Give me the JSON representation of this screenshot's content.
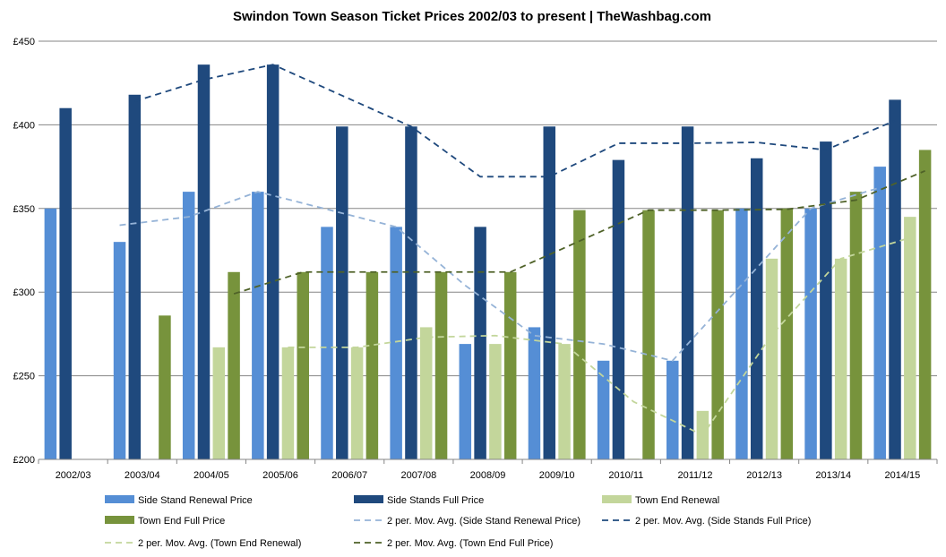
{
  "chart_data": {
    "type": "bar",
    "title": "Swindon Town Season Ticket Prices 2002/03 to present | TheWashbag.com",
    "xlabel": "",
    "ylabel": "",
    "ylim": [
      200,
      450
    ],
    "yticks": [
      200,
      250,
      300,
      350,
      400,
      450
    ],
    "ytick_labels": [
      "£200",
      "£250",
      "£300",
      "£350",
      "£400",
      "£450"
    ],
    "grid": true,
    "legend_position": "bottom",
    "categories": [
      "2002/03",
      "2003/04",
      "2004/05",
      "2005/06",
      "2006/07",
      "2007/08",
      "2008/09",
      "2009/10",
      "2010/11",
      "2011/12",
      "2012/13",
      "2013/14",
      "2014/15"
    ],
    "series": [
      {
        "name": "Side Stand Renewal Price",
        "color": "#558ed5",
        "values": [
          350,
          330,
          360,
          360,
          339,
          339,
          269,
          279,
          259,
          259,
          350,
          350,
          375
        ]
      },
      {
        "name": "Side Stands Full Price",
        "color": "#1f497d",
        "values": [
          410,
          418,
          436,
          436,
          399,
          399,
          339,
          399,
          379,
          399,
          380,
          390,
          415
        ]
      },
      {
        "name": "Town End Renewal",
        "color": "#c3d69b",
        "values": [
          null,
          null,
          267,
          267,
          267,
          279,
          269,
          269,
          200,
          229,
          320,
          320,
          345
        ]
      },
      {
        "name": "Town End Full Price",
        "color": "#77933c",
        "values": [
          null,
          286,
          312,
          312,
          312,
          312,
          312,
          349,
          349,
          349,
          350,
          360,
          385
        ]
      }
    ],
    "trendlines": [
      {
        "name": "2 per. Mov. Avg. (Side Stand Renewal Price)",
        "color": "#95b3d7",
        "dash": "dashed",
        "series_index": 0
      },
      {
        "name": "2 per. Mov. Avg. (Side Stands Full Price)",
        "color": "#1f497d",
        "dash": "dashed",
        "series_index": 1
      },
      {
        "name": "2 per. Mov. Avg. (Town End Renewal)",
        "color": "#c3d69b",
        "dash": "dashed",
        "series_index": 2
      },
      {
        "name": "2 per. Mov. Avg. (Town End Full Price)",
        "color": "#4f6228",
        "dash": "dashed",
        "series_index": 3
      }
    ]
  }
}
